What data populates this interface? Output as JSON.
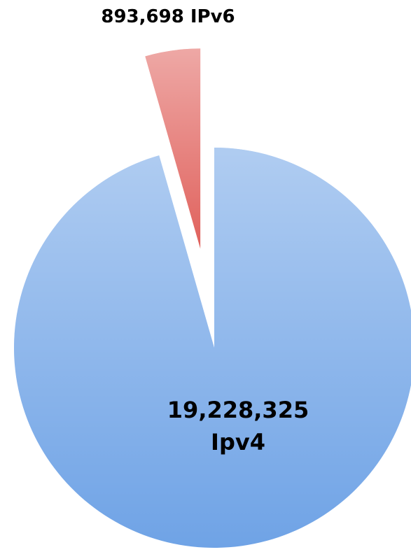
{
  "chart_data": {
    "type": "pie",
    "categories": [
      "Ipv4",
      "IPv6"
    ],
    "values": [
      19228325,
      893698
    ],
    "value_labels": [
      "19,228,325",
      "893,698"
    ],
    "colors": [
      "#6fa3e6",
      "#e0615c"
    ]
  }
}
